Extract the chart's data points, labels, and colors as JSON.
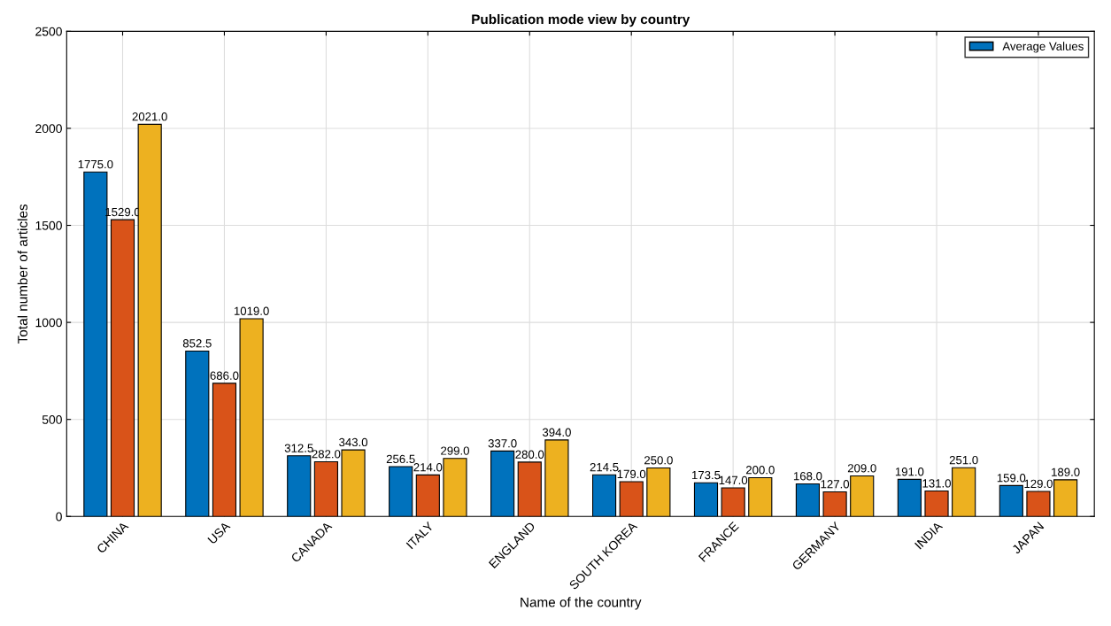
{
  "chart_data": {
    "type": "bar",
    "title": "Publication mode view by country",
    "xlabel": "Name of the country",
    "ylabel": "Total number of articles",
    "categories": [
      "CHINA",
      "USA",
      "CANADA",
      "ITALY",
      "ENGLAND",
      "SOUTH KOREA",
      "FRANCE",
      "GERMANY",
      "INDIA",
      "JAPAN"
    ],
    "series": [
      {
        "name": "Average Values",
        "color": "#0072bd",
        "values": [
          1775.0,
          852.5,
          312.5,
          256.5,
          337.0,
          214.5,
          173.5,
          168.0,
          191.0,
          159.0
        ],
        "value_labels": [
          "1775.0",
          "852.5",
          "312.5",
          "256.5",
          "337.0",
          "214.5",
          "173.5",
          "168.0",
          "191.0",
          "159.0"
        ]
      },
      {
        "color": "#d95319",
        "values": [
          1529,
          686,
          282,
          214,
          280,
          179,
          147,
          127,
          131,
          129
        ],
        "value_labels": [
          "1529.0",
          "686.0",
          "282.0",
          "214.0",
          "280.0",
          "179.0",
          "147.0",
          "127.0",
          "131.0",
          "129.0"
        ]
      },
      {
        "color": "#edb120",
        "values": [
          2021,
          1019,
          343,
          299,
          394,
          250,
          200,
          209,
          251,
          189
        ],
        "value_labels": [
          "2021.0",
          "1019.0",
          "343.0",
          "299.0",
          "394.0",
          "250.0",
          "200.0",
          "209.0",
          "251.0",
          "189.0"
        ]
      }
    ],
    "ylim": [
      0,
      2500
    ],
    "yticks": [
      0,
      500,
      1000,
      1500,
      2000,
      2500
    ],
    "grid": true,
    "legend": "top right"
  }
}
